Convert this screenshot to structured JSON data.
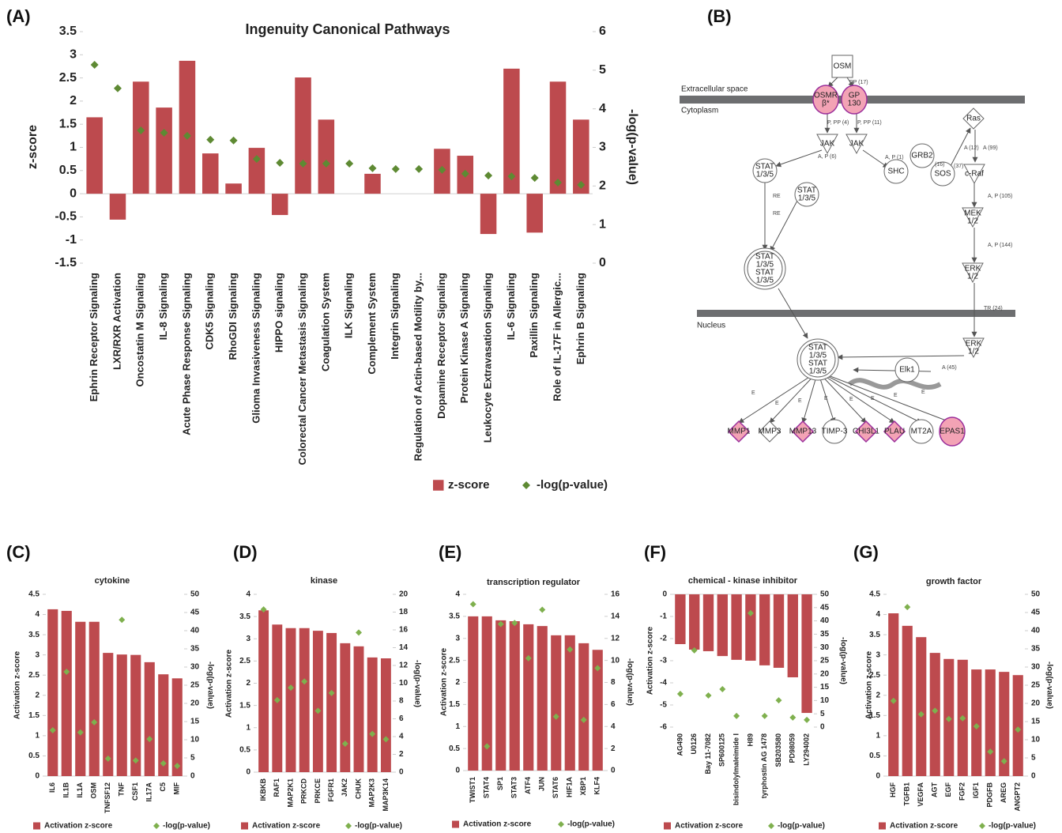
{
  "chart_data": [
    {
      "type": "bar",
      "panel": "(A)",
      "title": "Ingenuity Canonical Pathways",
      "ylabel": "z-score",
      "y2label": "-log(p-value)",
      "categories": [
        "Ephrin Receptor Signaling",
        "LXR/RXR Activation",
        "Oncostatin M Signaling",
        "IL-8 Signaling",
        "Acute Phase Response Signaling",
        "CDK5 Signaling",
        "RhoGDI Signaling",
        "Glioma Invasiveness Signaling",
        "HIPPO signaling",
        "Colorectal Cancer Metastasis Signaling",
        "Coagulation System",
        "ILK Signaling",
        "Complement System",
        "Integrin Signaling",
        "Regulation of Actin-based Motility by...",
        "Dopamine Receptor Signaling",
        "Protein Kinase A Signaling",
        "Leukocyte Extravasation Signaling",
        "IL-6 Signaling",
        "Paxillin Signaling",
        "Role of IL-17F in Allergic...",
        "Ephrin B Signaling"
      ],
      "series": [
        {
          "name": "z-score",
          "type": "bar",
          "color": "#bd4a4e",
          "values": [
            1.65,
            -0.56,
            2.42,
            1.86,
            2.87,
            0.87,
            0.22,
            0.99,
            -0.46,
            2.51,
            1.6,
            null,
            0.43,
            null,
            null,
            0.97,
            0.82,
            -0.87,
            2.7,
            -0.84,
            2.42,
            1.6
          ]
        },
        {
          "name": "-log(p-value)",
          "type": "scatter",
          "axis": "y2",
          "color": "#5e8a33",
          "values": [
            5.14,
            4.53,
            3.44,
            3.38,
            3.3,
            3.2,
            3.18,
            2.7,
            2.6,
            2.58,
            2.58,
            2.58,
            2.46,
            2.44,
            2.44,
            2.42,
            2.32,
            2.27,
            2.25,
            2.21,
            2.09,
            2.03
          ]
        }
      ],
      "ylim": [
        -1.5,
        3.5
      ],
      "yticks": [
        -1.5,
        -1,
        -0.5,
        0,
        0.5,
        1,
        1.5,
        2,
        2.5,
        3,
        3.5
      ],
      "y2lim": [
        0,
        6
      ],
      "y2ticks": [
        0,
        1,
        2,
        3,
        4,
        5,
        6
      ]
    },
    {
      "type": "bar",
      "panel": "(C)",
      "title": "cytokine",
      "ylabel": "Activation z-score",
      "y2label": "-log(p-value)",
      "categories": [
        "IL6",
        "IL1B",
        "IL1A",
        "OSM",
        "TNFSF12",
        "TNF",
        "CSF1",
        "IL17A",
        "C5",
        "MIF"
      ],
      "series": [
        {
          "name": "Activation z-score",
          "type": "bar",
          "color": "#bd4a4e",
          "values": [
            4.13,
            4.09,
            3.82,
            3.82,
            3.05,
            3.01,
            3.0,
            2.82,
            2.52,
            2.42
          ]
        },
        {
          "name": "-log(p-value)",
          "type": "scatter",
          "axis": "y2",
          "color": "#7fb04e",
          "values": [
            12.6,
            28.7,
            12,
            14.8,
            4.8,
            43,
            4.3,
            10.2,
            3.5,
            2.8
          ]
        }
      ],
      "ylim": [
        0,
        4.5
      ],
      "yticks": [
        0,
        0.5,
        1,
        1.5,
        2,
        2.5,
        3,
        3.5,
        4,
        4.5
      ],
      "y2lim": [
        0,
        50
      ],
      "y2ticks": [
        0,
        5,
        10,
        15,
        20,
        25,
        30,
        35,
        40,
        45,
        50
      ]
    },
    {
      "type": "bar",
      "panel": "(D)",
      "title": "kinase",
      "ylabel": "Activation z-score",
      "y2label": "-log(p-value)",
      "categories": [
        "IKBKB",
        "RAF1",
        "MAP2K1",
        "PRKCD",
        "PRKCE",
        "FGFR1",
        "JAK2",
        "CHUK",
        "MAP2K3",
        "MAP3K14"
      ],
      "series": [
        {
          "name": "Activation z-score",
          "type": "bar",
          "color": "#bd4a4e",
          "values": [
            3.64,
            3.32,
            3.24,
            3.24,
            3.18,
            3.13,
            2.9,
            2.83,
            2.58,
            2.56
          ]
        },
        {
          "name": "-log(p-value)",
          "type": "scatter",
          "axis": "y2",
          "color": "#7fb04e",
          "values": [
            18.3,
            8.1,
            9.5,
            10.2,
            6.9,
            8.9,
            3.2,
            15.7,
            4.3,
            3.7
          ]
        }
      ],
      "ylim": [
        0,
        4
      ],
      "yticks": [
        0,
        0.5,
        1,
        1.5,
        2,
        2.5,
        3,
        3.5,
        4
      ],
      "y2lim": [
        0,
        20
      ],
      "y2ticks": [
        0,
        2,
        4,
        6,
        8,
        10,
        12,
        14,
        16,
        18,
        20
      ]
    },
    {
      "type": "bar",
      "panel": "(E)",
      "title": "transcription regulator",
      "ylabel": "Activation z-score",
      "y2label": "-log(p-value)",
      "categories": [
        "TWIST1",
        "STAT4",
        "SP1",
        "STAT3",
        "ATF4",
        "JUN",
        "STAT6",
        "HIF1A",
        "XBP1",
        "KLF4"
      ],
      "series": [
        {
          "name": "Activation z-score",
          "type": "bar",
          "color": "#bd4a4e",
          "values": [
            3.5,
            3.5,
            3.41,
            3.39,
            3.32,
            3.28,
            3.07,
            3.07,
            2.89,
            2.74
          ]
        },
        {
          "name": "-log(p-value)",
          "type": "scatter",
          "axis": "y2",
          "color": "#7fb04e",
          "values": [
            15.1,
            2.2,
            13.3,
            13.4,
            10.2,
            14.6,
            4.9,
            11,
            4.6,
            9.3
          ]
        }
      ],
      "ylim": [
        0,
        4
      ],
      "yticks": [
        0,
        0.5,
        1,
        1.5,
        2,
        2.5,
        3,
        3.5,
        4
      ],
      "y2lim": [
        0,
        16
      ],
      "y2ticks": [
        0,
        2,
        4,
        6,
        8,
        10,
        12,
        14,
        16
      ]
    },
    {
      "type": "bar",
      "panel": "(F)",
      "title": "chemical - kinase inhibitor",
      "ylabel": "Activation z-score",
      "y2label": "-log(p-value)",
      "categories": [
        "AG490",
        "U0126",
        "Bay 11-7082",
        "SP600125",
        "bisindolylmaleimide I",
        "H89",
        "tyrphostin AG 1478",
        "SB203580",
        "PD98059",
        "LY294002"
      ],
      "series": [
        {
          "name": "Activation z-score",
          "type": "bar",
          "color": "#bd4a4e",
          "values": [
            -2.25,
            -2.5,
            -2.57,
            -2.79,
            -2.96,
            -3.0,
            -3.21,
            -3.32,
            -3.75,
            -5.36
          ]
        },
        {
          "name": "-log(p-value)",
          "type": "scatter",
          "axis": "y2",
          "color": "#7fb04e",
          "values": [
            12.5,
            28.9,
            11.9,
            14.3,
            4.2,
            42.9,
            4.2,
            10.1,
            3.6,
            2.7
          ]
        }
      ],
      "ylim": [
        -6,
        0
      ],
      "yticks": [
        -6,
        -5,
        -4,
        -3,
        -2,
        -1,
        0
      ],
      "y2lim": [
        0,
        50
      ],
      "y2ticks": [
        0,
        5,
        10,
        15,
        20,
        25,
        30,
        35,
        40,
        45,
        50
      ]
    },
    {
      "type": "bar",
      "panel": "(G)",
      "title": "growth factor",
      "ylabel": "Activation z-score",
      "y2label": "-log(p-value)",
      "categories": [
        "HGF",
        "TGFB1",
        "VEGFA",
        "AGT",
        "EGF",
        "FGF2",
        "IGF1",
        "PDGFB",
        "AREG",
        "ANGPT2"
      ],
      "series": [
        {
          "name": "Activation z-score",
          "type": "bar",
          "color": "#bd4a4e",
          "values": [
            4.03,
            3.72,
            3.44,
            3.05,
            2.9,
            2.88,
            2.64,
            2.64,
            2.58,
            2.5
          ]
        },
        {
          "name": "-log(p-value)",
          "type": "scatter",
          "axis": "y2",
          "color": "#7fb04e",
          "values": [
            20.7,
            46.5,
            17,
            18,
            15.7,
            15.9,
            13.7,
            6.7,
            4.1,
            12.8
          ]
        }
      ],
      "ylim": [
        0,
        4.5
      ],
      "yticks": [
        0,
        0.5,
        1,
        1.5,
        2,
        2.5,
        3,
        3.5,
        4,
        4.5
      ],
      "y2lim": [
        0,
        50
      ],
      "y2ticks": [
        0,
        5,
        10,
        15,
        20,
        25,
        30,
        35,
        40,
        45,
        50
      ]
    }
  ],
  "diagram": {
    "panel": "(B)",
    "compartments": [
      "Extracellular space",
      "Cytoplasm",
      "Nucleus"
    ],
    "nodes": [
      {
        "lines": [
          "OSM"
        ]
      },
      {
        "lines": [
          "OSMR",
          "β*"
        ]
      },
      {
        "lines": [
          "GP",
          "130"
        ]
      },
      {
        "lines": [
          "JAK"
        ]
      },
      {
        "lines": [
          "JAK"
        ]
      },
      {
        "lines": [
          "STAT",
          "1/3/5"
        ]
      },
      {
        "lines": [
          "STAT",
          "1/3/5"
        ]
      },
      {
        "lines": [
          "SHC"
        ]
      },
      {
        "lines": [
          "GRB2"
        ]
      },
      {
        "lines": [
          "SOS"
        ]
      },
      {
        "lines": [
          "Ras"
        ]
      },
      {
        "lines": [
          "c-Raf"
        ]
      },
      {
        "lines": [
          "MEK",
          "1/2"
        ]
      },
      {
        "lines": [
          "STAT",
          "1/3/5",
          "STAT",
          "1/3/5"
        ]
      },
      {
        "lines": [
          "ERK",
          "1/2"
        ]
      },
      {
        "lines": [
          "ERK",
          "1/2"
        ]
      },
      {
        "lines": [
          "STAT",
          "1/3/5",
          "STAT",
          "1/3/5"
        ]
      },
      {
        "lines": [
          "Elk1"
        ]
      },
      {
        "lines": [
          "MMP1"
        ]
      },
      {
        "lines": [
          "MMP3"
        ]
      },
      {
        "lines": [
          "MMP13"
        ]
      },
      {
        "lines": [
          "TIMP-3"
        ]
      },
      {
        "lines": [
          "CHI3L1"
        ]
      },
      {
        "lines": [
          "PLAU"
        ]
      },
      {
        "lines": [
          "MT2A"
        ]
      },
      {
        "lines": [
          "EPAS1"
        ]
      }
    ],
    "edge_labels": [
      "PP (17)",
      "P, PP (4)",
      "P, PP (11)",
      "A, P (6)",
      "A, P (1)",
      "(16)",
      "(37)",
      "A (12)",
      "A (99)",
      "A, P (105)",
      "A, P (144)",
      "RE",
      "RE",
      "TR (24)",
      "A (45)",
      "E",
      "E",
      "E",
      "E",
      "E",
      "E",
      "E",
      "E"
    ]
  }
}
